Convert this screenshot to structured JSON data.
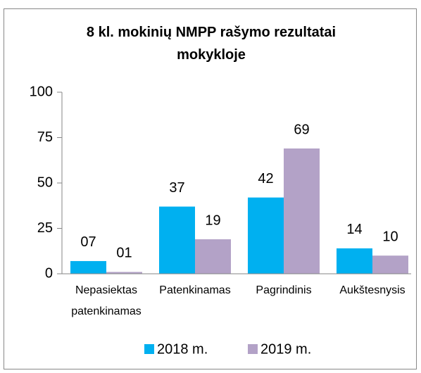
{
  "chart_data": {
    "type": "bar",
    "title": "8 kl. mokinių NMPP rašymo rezultatai mokykloje",
    "categories": [
      "Nepasiektas patenkinamas",
      "Patenkinamas",
      "Pagrindinis",
      "Aukštesnysis"
    ],
    "series": [
      {
        "name": "2018 m.",
        "color": "#00b0f0",
        "values": [
          7,
          37,
          42,
          14
        ],
        "value_labels": [
          "07",
          "37",
          "42",
          "14"
        ]
      },
      {
        "name": "2019 m.",
        "color": "#b3a2c7",
        "values": [
          1,
          19,
          69,
          10
        ],
        "value_labels": [
          "01",
          "19",
          "69",
          "10"
        ]
      }
    ],
    "ylim": [
      0,
      100
    ],
    "yticks": [
      0,
      25,
      50,
      75,
      100
    ],
    "grid": false,
    "legend": "bottom"
  }
}
